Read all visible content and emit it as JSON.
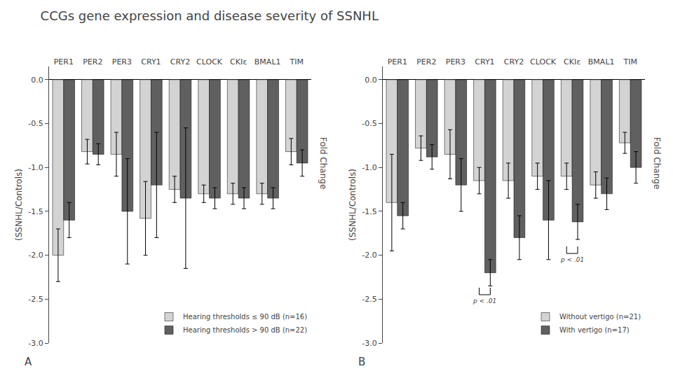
{
  "chart_data": [
    {
      "type": "bar",
      "title": "CCGs gene expression and disease severity of SSNHL",
      "panel_label": "A",
      "categories": [
        "PER1",
        "PER2",
        "PER3",
        "CRY1",
        "CRY2",
        "CLOCK",
        "CKIε",
        "BMAL1",
        "TIM"
      ],
      "series": [
        {
          "name": "Hearing thresholds ≤ 90 dB (n=16)",
          "color": "#d3d3d3",
          "values": [
            -2.0,
            -0.82,
            -0.85,
            -1.58,
            -1.25,
            -1.3,
            -1.3,
            -1.3,
            -0.82
          ],
          "errors": [
            0.3,
            0.14,
            0.25,
            0.42,
            0.15,
            0.1,
            0.12,
            0.12,
            0.15
          ]
        },
        {
          "name": "Hearing thresholds > 90 dB (n=22)",
          "color": "#606060",
          "values": [
            -1.6,
            -0.85,
            -1.5,
            -1.2,
            -1.35,
            -1.35,
            -1.35,
            -1.35,
            -0.95
          ],
          "errors": [
            0.2,
            0.12,
            0.6,
            0.6,
            0.8,
            0.12,
            0.12,
            0.12,
            0.15
          ]
        }
      ],
      "ylabel": "(SSNHL/Controls)",
      "ylabel_right": "Fold Change",
      "ylim": [
        -3.0,
        0.15
      ],
      "yticks": [
        {
          "value": 0.0,
          "label": "0.0"
        },
        -0.5,
        {
          "value": -1.0,
          "label": "-1.0"
        },
        -1.5,
        {
          "value": -2.0,
          "label": "-2.0"
        },
        -2.5,
        {
          "value": -3.0,
          "label": "-3.0"
        }
      ],
      "grid": false,
      "legend": "lower right",
      "significance": []
    },
    {
      "type": "bar",
      "panel_label": "B",
      "categories": [
        "PER1",
        "PER2",
        "PER3",
        "CRY1",
        "CRY2",
        "CLOCK",
        "CKIε",
        "BMAL1",
        "TIM"
      ],
      "series": [
        {
          "name": "Without vertigo (n=21)",
          "color": "#d3d3d3",
          "values": [
            -1.4,
            -0.78,
            -0.85,
            -1.15,
            -1.15,
            -1.1,
            -1.1,
            -1.2,
            -0.72
          ],
          "errors": [
            0.55,
            0.14,
            0.28,
            0.15,
            0.2,
            0.15,
            0.15,
            0.15,
            0.12
          ]
        },
        {
          "name": "With vertigo (n=17)",
          "color": "#606060",
          "values": [
            -1.55,
            -0.88,
            -1.2,
            -2.2,
            -1.8,
            -1.6,
            -1.62,
            -1.3,
            -1.0
          ],
          "errors": [
            0.15,
            0.14,
            0.3,
            0.15,
            0.25,
            0.45,
            0.2,
            0.18,
            0.18
          ]
        }
      ],
      "ylabel": "(SSNHL/Controls)",
      "ylabel_right": "Fold Change",
      "ylim": [
        -3.0,
        0.15
      ],
      "yticks": [
        {
          "value": 0.0,
          "label": "0.0"
        },
        -0.5,
        {
          "value": -1.0,
          "label": "-1.0"
        },
        -1.5,
        {
          "value": -2.0,
          "label": "-2.0"
        },
        -2.5,
        {
          "value": -3.0,
          "label": "-3.0"
        }
      ],
      "grid": false,
      "legend": "lower right",
      "significance": [
        {
          "category": "CRY1",
          "y": -2.45,
          "label": "p < .01"
        },
        {
          "category": "CKIε",
          "y": -1.98,
          "label": "p < .01"
        }
      ]
    }
  ]
}
